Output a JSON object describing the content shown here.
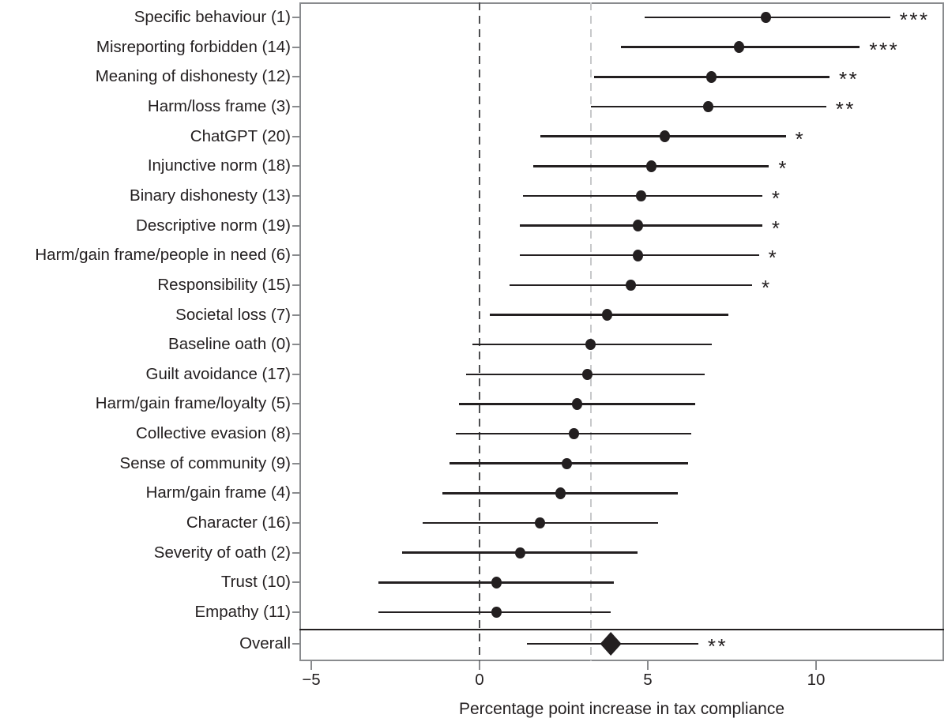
{
  "figure": {
    "background_color": "#ffffff",
    "line_color": "#231f20",
    "frame_color": "#898b8e"
  },
  "chart_data": {
    "type": "scatter",
    "subtype": "forest-plot",
    "title": "",
    "xlabel": "Percentage point increase in tax compliance",
    "ylabel": "",
    "xlim": [
      -5.35,
      13.8
    ],
    "grid": false,
    "x_ticks": [
      -5,
      0,
      5,
      10
    ],
    "x_tick_labels": [
      "−5",
      "0",
      "5",
      "10"
    ],
    "reference_lines": [
      {
        "name": "zero-line",
        "value": 0,
        "style": "dashed",
        "color": "#4d4e50"
      },
      {
        "name": "baseline-oath-line",
        "value": 3.3,
        "style": "dashed",
        "color": "#c7c8ca"
      }
    ],
    "rows": [
      {
        "label": "Specific behaviour (1)",
        "estimate": 8.5,
        "ci_low": 4.9,
        "ci_high": 12.2,
        "stars": "***"
      },
      {
        "label": "Misreporting forbidden (14)",
        "estimate": 7.7,
        "ci_low": 4.2,
        "ci_high": 11.3,
        "stars": "***"
      },
      {
        "label": "Meaning of dishonesty (12)",
        "estimate": 6.9,
        "ci_low": 3.4,
        "ci_high": 10.4,
        "stars": "**"
      },
      {
        "label": "Harm/loss frame (3)",
        "estimate": 6.8,
        "ci_low": 3.3,
        "ci_high": 10.3,
        "stars": "**"
      },
      {
        "label": "ChatGPT (20)",
        "estimate": 5.5,
        "ci_low": 1.8,
        "ci_high": 9.1,
        "stars": "*"
      },
      {
        "label": "Injunctive norm (18)",
        "estimate": 5.1,
        "ci_low": 1.6,
        "ci_high": 8.6,
        "stars": "*"
      },
      {
        "label": "Binary dishonesty (13)",
        "estimate": 4.8,
        "ci_low": 1.3,
        "ci_high": 8.4,
        "stars": "*"
      },
      {
        "label": "Descriptive norm (19)",
        "estimate": 4.7,
        "ci_low": 1.2,
        "ci_high": 8.4,
        "stars": "*"
      },
      {
        "label": "Harm/gain frame/people in need (6)",
        "estimate": 4.7,
        "ci_low": 1.2,
        "ci_high": 8.3,
        "stars": "*"
      },
      {
        "label": "Responsibility (15)",
        "estimate": 4.5,
        "ci_low": 0.9,
        "ci_high": 8.1,
        "stars": "*"
      },
      {
        "label": "Societal loss (7)",
        "estimate": 3.8,
        "ci_low": 0.3,
        "ci_high": 7.4,
        "stars": ""
      },
      {
        "label": "Baseline oath (0)",
        "estimate": 3.3,
        "ci_low": -0.2,
        "ci_high": 6.9,
        "stars": ""
      },
      {
        "label": "Guilt avoidance (17)",
        "estimate": 3.2,
        "ci_low": -0.4,
        "ci_high": 6.7,
        "stars": ""
      },
      {
        "label": "Harm/gain frame/loyalty (5)",
        "estimate": 2.9,
        "ci_low": -0.6,
        "ci_high": 6.4,
        "stars": ""
      },
      {
        "label": "Collective evasion (8)",
        "estimate": 2.8,
        "ci_low": -0.7,
        "ci_high": 6.3,
        "stars": ""
      },
      {
        "label": "Sense of community (9)",
        "estimate": 2.6,
        "ci_low": -0.9,
        "ci_high": 6.2,
        "stars": ""
      },
      {
        "label": "Harm/gain frame (4)",
        "estimate": 2.4,
        "ci_low": -1.1,
        "ci_high": 5.9,
        "stars": ""
      },
      {
        "label": "Character (16)",
        "estimate": 1.8,
        "ci_low": -1.7,
        "ci_high": 5.3,
        "stars": ""
      },
      {
        "label": "Severity of oath (2)",
        "estimate": 1.2,
        "ci_low": -2.3,
        "ci_high": 4.7,
        "stars": ""
      },
      {
        "label": "Trust (10)",
        "estimate": 0.5,
        "ci_low": -3.0,
        "ci_high": 4.0,
        "stars": ""
      },
      {
        "label": "Empathy (11)",
        "estimate": 0.5,
        "ci_low": -3.0,
        "ci_high": 3.9,
        "stars": ""
      }
    ],
    "overall": {
      "label": "Overall",
      "estimate": 3.9,
      "ci_low": 1.4,
      "ci_high": 6.5,
      "stars": "**",
      "marker": "diamond"
    }
  }
}
